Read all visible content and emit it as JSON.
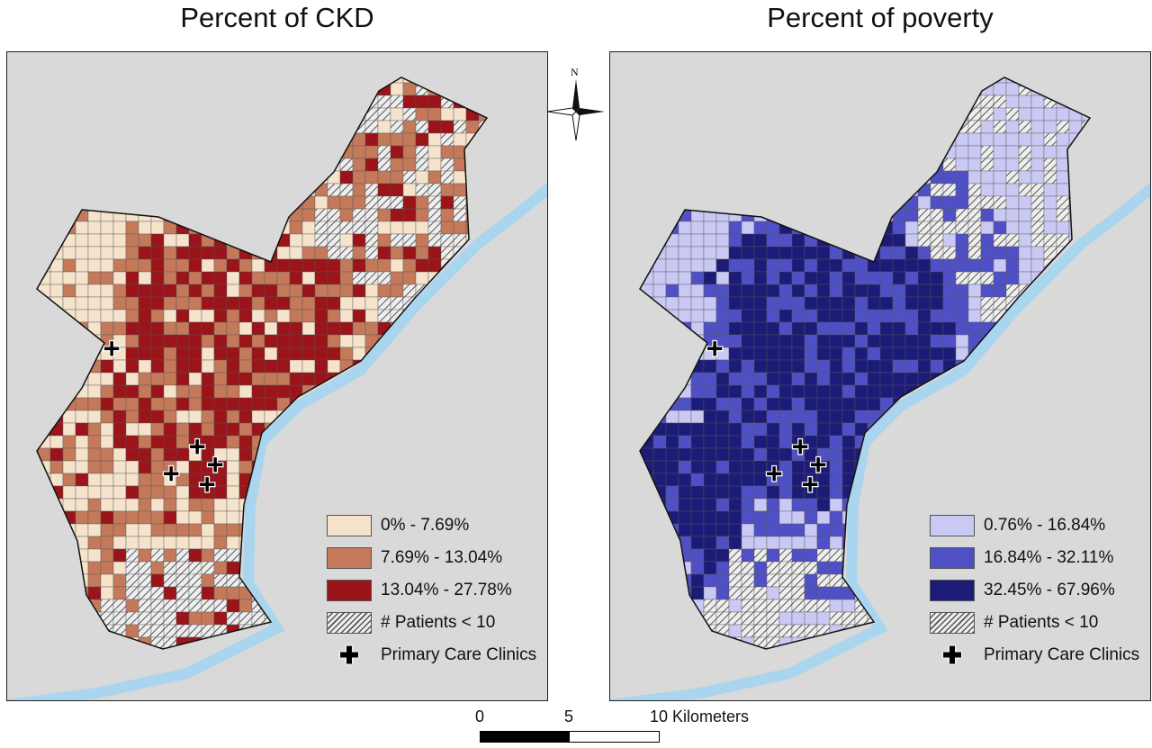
{
  "maps": [
    {
      "title": "Percent of CKD",
      "legend": [
        {
          "label": "0% - 7.69%",
          "color": "#f5e3cc"
        },
        {
          "label": "7.69% - 13.04%",
          "color": "#c47a5a"
        },
        {
          "label": "13.04% - 27.78%",
          "color": "#9a1419"
        }
      ],
      "hatch_label": "# Patients < 10",
      "clinic_label": "Primary Care Clinics"
    },
    {
      "title": "Percent of poverty",
      "legend": [
        {
          "label": "0.76% - 16.84%",
          "color": "#c9c9f4"
        },
        {
          "label": "16.84% - 32.11%",
          "color": "#5050c6"
        },
        {
          "label": "32.45% - 67.96%",
          "color": "#1c1c78"
        }
      ],
      "hatch_label": "# Patients < 10",
      "clinic_label": "Primary Care Clinics"
    }
  ],
  "north_label": "N",
  "scale_bar": {
    "ticks": [
      "0",
      "5",
      "10 Kilometers"
    ]
  },
  "colors": {
    "background": "#d9d9d9",
    "water": "#a9d5ee",
    "hatch": "#555555"
  }
}
